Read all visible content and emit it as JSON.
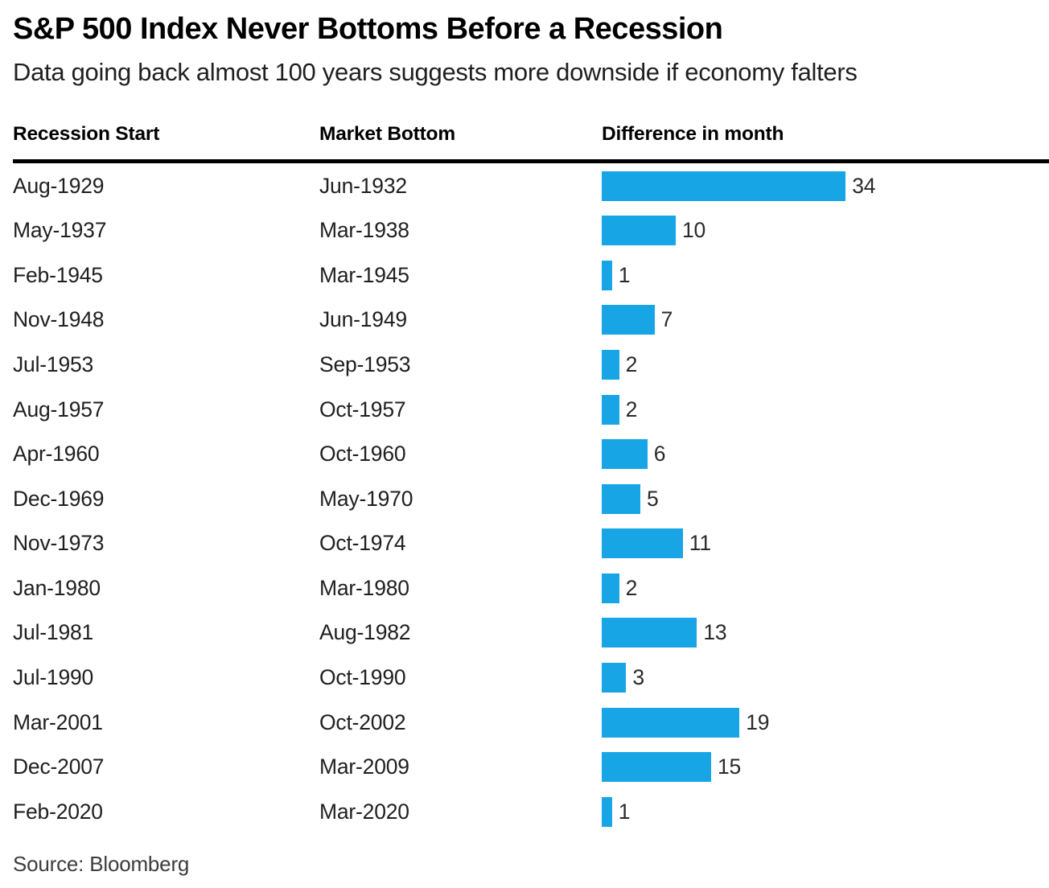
{
  "header": {
    "title": "S&P 500 Index Never Bottoms Before a Recession",
    "subtitle": "Data going back almost 100 years suggests more downside if economy falters"
  },
  "table": {
    "columns": [
      "Recession Start",
      "Market Bottom",
      "Difference in month"
    ],
    "rows": [
      {
        "recession_start": "Aug-1929",
        "market_bottom": "Jun-1932",
        "difference_months": 34
      },
      {
        "recession_start": "May-1937",
        "market_bottom": "Mar-1938",
        "difference_months": 10
      },
      {
        "recession_start": "Feb-1945",
        "market_bottom": "Mar-1945",
        "difference_months": 1
      },
      {
        "recession_start": "Nov-1948",
        "market_bottom": "Jun-1949",
        "difference_months": 7
      },
      {
        "recession_start": "Jul-1953",
        "market_bottom": "Sep-1953",
        "difference_months": 2
      },
      {
        "recession_start": "Aug-1957",
        "market_bottom": "Oct-1957",
        "difference_months": 2
      },
      {
        "recession_start": "Apr-1960",
        "market_bottom": "Oct-1960",
        "difference_months": 6
      },
      {
        "recession_start": "Dec-1969",
        "market_bottom": "May-1970",
        "difference_months": 5
      },
      {
        "recession_start": "Nov-1973",
        "market_bottom": "Oct-1974",
        "difference_months": 11
      },
      {
        "recession_start": "Jan-1980",
        "market_bottom": "Mar-1980",
        "difference_months": 2
      },
      {
        "recession_start": "Jul-1981",
        "market_bottom": "Aug-1982",
        "difference_months": 13
      },
      {
        "recession_start": "Jul-1990",
        "market_bottom": "Oct-1990",
        "difference_months": 3
      },
      {
        "recession_start": "Mar-2001",
        "market_bottom": "Oct-2002",
        "difference_months": 19
      },
      {
        "recession_start": "Dec-2007",
        "market_bottom": "Mar-2009",
        "difference_months": 15
      },
      {
        "recession_start": "Feb-2020",
        "market_bottom": "Mar-2020",
        "difference_months": 1
      }
    ]
  },
  "source": "Source: Bloomberg",
  "colors": {
    "bar": "#18A5E6",
    "rule": "#000000",
    "title_text": "#000000",
    "body_text": "#1f1f1f",
    "source_text": "#3d3d3d"
  },
  "chart_data": {
    "type": "bar",
    "orientation": "horizontal",
    "title": "S&P 500 Index Never Bottoms Before a Recession",
    "subtitle": "Data going back almost 100 years suggests more downside if economy falters",
    "categories": [
      "Aug-1929",
      "May-1937",
      "Feb-1945",
      "Nov-1948",
      "Jul-1953",
      "Aug-1957",
      "Apr-1960",
      "Dec-1969",
      "Nov-1973",
      "Jan-1980",
      "Jul-1981",
      "Jul-1990",
      "Mar-2001",
      "Dec-2007",
      "Feb-2020"
    ],
    "market_bottom_labels": [
      "Jun-1932",
      "Mar-1938",
      "Mar-1945",
      "Jun-1949",
      "Sep-1953",
      "Oct-1957",
      "Oct-1960",
      "May-1970",
      "Oct-1974",
      "Mar-1980",
      "Aug-1982",
      "Oct-1990",
      "Oct-2002",
      "Mar-2009",
      "Mar-2020"
    ],
    "series": [
      {
        "name": "Difference in month",
        "values": [
          34,
          10,
          1,
          7,
          2,
          2,
          6,
          5,
          11,
          2,
          13,
          3,
          19,
          15,
          1
        ]
      }
    ],
    "xlabel": "Difference in month",
    "ylabel": "Recession Start",
    "xlim": [
      0,
      34
    ],
    "grid": false,
    "legend_position": "none",
    "value_labels_shown": true,
    "bar_color": "#18A5E6",
    "source": "Source: Bloomberg"
  }
}
